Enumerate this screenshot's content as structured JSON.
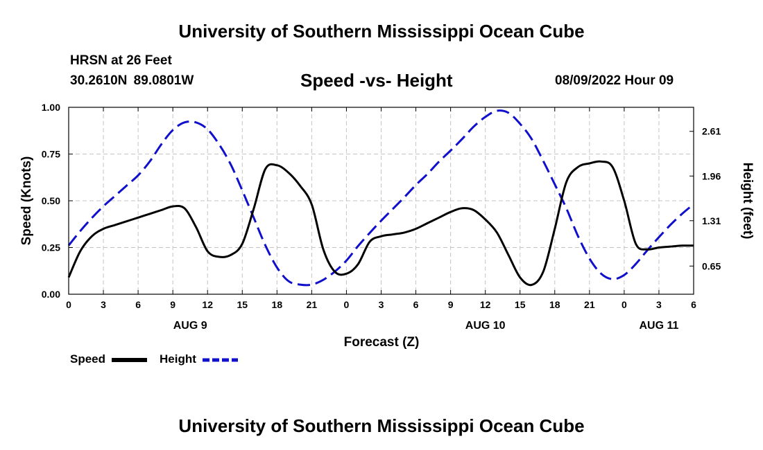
{
  "header": {
    "title": "University of Southern Mississippi Ocean Cube",
    "station": "HRSN at 26 Feet",
    "coords": "30.2610N  89.0801W",
    "chart_title": "Speed -vs- Height",
    "datetime": "08/09/2022 Hour 09"
  },
  "footer": {
    "title": "University of Southern Mississippi Ocean Cube"
  },
  "chart_data": {
    "type": "line",
    "title": "Speed -vs- Height",
    "xlabel": "Forecast (Z)",
    "ylabel": "Speed (Knots)",
    "y2label": "Height (feet)",
    "xlim": [
      0,
      54
    ],
    "ylim": [
      0,
      1
    ],
    "y2lim": [
      0.24,
      2.96
    ],
    "grid": true,
    "x_ticks": [
      0,
      3,
      6,
      9,
      12,
      15,
      18,
      21,
      24,
      27,
      30,
      33,
      36,
      39,
      42,
      45,
      48,
      51,
      54
    ],
    "x_tick_labels": [
      "0",
      "3",
      "6",
      "9",
      "12",
      "15",
      "18",
      "21",
      "0",
      "3",
      "6",
      "9",
      "12",
      "15",
      "18",
      "21",
      "0",
      "3",
      "6"
    ],
    "y_ticks": [
      0,
      0.25,
      0.5,
      0.75,
      1.0
    ],
    "y_tick_labels": [
      "0.00",
      "0.25",
      "0.50",
      "0.75",
      "1.00"
    ],
    "y2_ticks": [
      0.65,
      1.31,
      1.96,
      2.61
    ],
    "y2_tick_labels": [
      "0.65",
      "1.31",
      "1.96",
      "2.61"
    ],
    "date_labels": [
      {
        "x": 10.5,
        "label": "AUG 9"
      },
      {
        "x": 36,
        "label": "AUG 10"
      },
      {
        "x": 51,
        "label": "AUG 11"
      }
    ],
    "series": [
      {
        "name": "Speed",
        "axis": "left",
        "color": "#000000",
        "style": "solid",
        "x": [
          0,
          1,
          2,
          3,
          4,
          5,
          6,
          7,
          8,
          9,
          10,
          11,
          12,
          13,
          14,
          15,
          16,
          17,
          18,
          19,
          20,
          21,
          22,
          23,
          24,
          25,
          26,
          27,
          28,
          29,
          30,
          31,
          32,
          33,
          34,
          35,
          36,
          37,
          38,
          39,
          40,
          41,
          42,
          43,
          44,
          45,
          46,
          47,
          48,
          49,
          50,
          51,
          52,
          53,
          54
        ],
        "values": [
          0.09,
          0.23,
          0.31,
          0.35,
          0.37,
          0.39,
          0.41,
          0.43,
          0.45,
          0.47,
          0.46,
          0.36,
          0.23,
          0.2,
          0.21,
          0.27,
          0.46,
          0.67,
          0.69,
          0.65,
          0.58,
          0.48,
          0.24,
          0.12,
          0.11,
          0.16,
          0.28,
          0.31,
          0.32,
          0.33,
          0.35,
          0.38,
          0.41,
          0.44,
          0.46,
          0.45,
          0.4,
          0.33,
          0.21,
          0.09,
          0.05,
          0.12,
          0.35,
          0.6,
          0.68,
          0.7,
          0.71,
          0.68,
          0.5,
          0.27,
          0.24,
          0.25,
          0.255,
          0.26,
          0.26
        ]
      },
      {
        "name": "Height",
        "axis": "right",
        "color": "#1010cc",
        "style": "dashed",
        "x": [
          0,
          1,
          2,
          3,
          4,
          5,
          6,
          7,
          8,
          9,
          10,
          11,
          12,
          13,
          14,
          15,
          16,
          17,
          18,
          19,
          20,
          21,
          22,
          23,
          24,
          25,
          26,
          27,
          28,
          29,
          30,
          31,
          32,
          33,
          34,
          35,
          36,
          37,
          38,
          39,
          40,
          41,
          42,
          43,
          44,
          45,
          46,
          47,
          48,
          49,
          50,
          51,
          52,
          53,
          54
        ],
        "values": [
          0.95,
          1.16,
          1.35,
          1.52,
          1.67,
          1.82,
          1.97,
          2.17,
          2.42,
          2.63,
          2.74,
          2.74,
          2.64,
          2.42,
          2.13,
          1.75,
          1.35,
          0.95,
          0.63,
          0.43,
          0.38,
          0.38,
          0.45,
          0.57,
          0.73,
          0.94,
          1.13,
          1.31,
          1.48,
          1.65,
          1.83,
          1.99,
          2.17,
          2.33,
          2.5,
          2.68,
          2.82,
          2.91,
          2.88,
          2.72,
          2.5,
          2.18,
          1.84,
          1.49,
          1.09,
          0.76,
          0.54,
          0.46,
          0.52,
          0.68,
          0.88,
          1.07,
          1.25,
          1.41,
          1.55
        ]
      }
    ]
  },
  "legend": {
    "speed_label": "Speed",
    "height_label": "Height"
  }
}
